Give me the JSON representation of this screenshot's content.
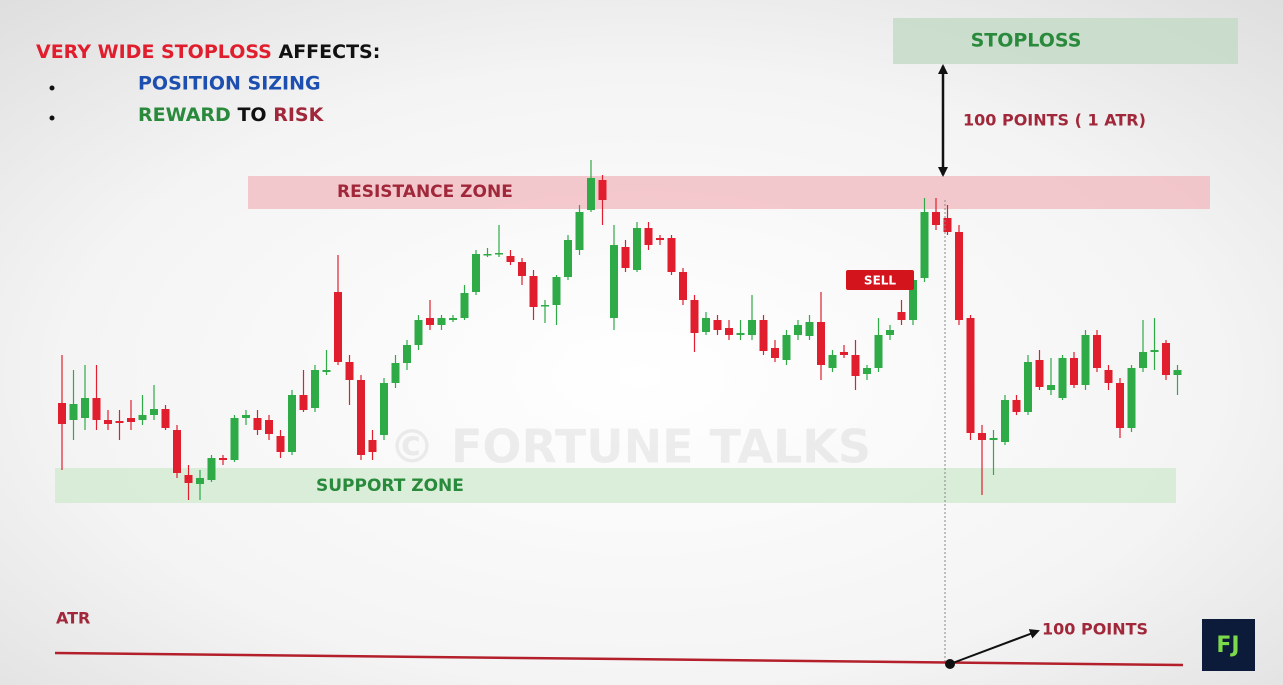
{
  "heading": {
    "lead": "VERY WIDE STOPLOSS",
    "tail": "AFFECTS:"
  },
  "bullets": {
    "sizing": "POSITION SIZING",
    "reward": "REWARD",
    "to": "TO",
    "risk": "RISK"
  },
  "labels": {
    "stoploss": "STOPLOSS",
    "distance": "100 POINTS ( 1 ATR)",
    "resistance": "RESISTANCE ZONE",
    "support": "SUPPORT ZONE",
    "sell": "SELL",
    "atr": "ATR",
    "atr_points": "100 POINTS",
    "watermark": "© FORTUNE TALKS",
    "logo": "FJ"
  },
  "chart_data": {
    "type": "candlestick",
    "ylim": [
      0,
      685
    ],
    "up_color": "#2eaa47",
    "down_color": "#e01e2d",
    "candles": [
      [
        282,
        330,
        215,
        261
      ],
      [
        265,
        315,
        245,
        281
      ],
      [
        267,
        320,
        255,
        287
      ],
      [
        287,
        320,
        255,
        265
      ],
      [
        265,
        275,
        255,
        261
      ],
      [
        264,
        275,
        245,
        262
      ],
      [
        267,
        285,
        255,
        263
      ],
      [
        265,
        290,
        260,
        270
      ],
      [
        270,
        300,
        265,
        276
      ],
      [
        276,
        280,
        255,
        257
      ],
      [
        255,
        260,
        207,
        212
      ],
      [
        210,
        220,
        185,
        202
      ],
      [
        201,
        215,
        185,
        207
      ],
      [
        205,
        230,
        203,
        227
      ],
      [
        227,
        230,
        220,
        225
      ],
      [
        225,
        270,
        223,
        267
      ],
      [
        267,
        275,
        260,
        270
      ],
      [
        267,
        275,
        250,
        255
      ],
      [
        265,
        270,
        245,
        251
      ],
      [
        249,
        255,
        227,
        233
      ],
      [
        233,
        295,
        230,
        290
      ],
      [
        290,
        315,
        273,
        275
      ],
      [
        277,
        320,
        273,
        315
      ],
      [
        313,
        335,
        310,
        315
      ],
      [
        393,
        430,
        320,
        323
      ],
      [
        323,
        330,
        280,
        305
      ],
      [
        305,
        310,
        225,
        230
      ],
      [
        245,
        255,
        225,
        233
      ],
      [
        250,
        307,
        245,
        302
      ],
      [
        302,
        330,
        297,
        322
      ],
      [
        322,
        345,
        315,
        340
      ],
      [
        340,
        370,
        335,
        365
      ],
      [
        367,
        385,
        355,
        360
      ],
      [
        360,
        370,
        355,
        367
      ],
      [
        365,
        370,
        363,
        367
      ],
      [
        367,
        400,
        365,
        392
      ],
      [
        393,
        435,
        390,
        431
      ],
      [
        430,
        437,
        428,
        431
      ],
      [
        431,
        460,
        428,
        432
      ],
      [
        429,
        435,
        420,
        423
      ],
      [
        423,
        427,
        400,
        409
      ],
      [
        409,
        415,
        365,
        378
      ],
      [
        379,
        385,
        362,
        380
      ],
      [
        380,
        410,
        360,
        408
      ],
      [
        408,
        450,
        405,
        445
      ],
      [
        435,
        480,
        430,
        473
      ],
      [
        475,
        525,
        473,
        507
      ],
      [
        505,
        510,
        460,
        485
      ],
      [
        367,
        460,
        355,
        440
      ],
      [
        438,
        445,
        413,
        417
      ],
      [
        415,
        463,
        413,
        457
      ],
      [
        457,
        463,
        435,
        440
      ],
      [
        447,
        450,
        440,
        445
      ],
      [
        447,
        450,
        410,
        413
      ],
      [
        413,
        417,
        380,
        385
      ],
      [
        385,
        390,
        333,
        352
      ],
      [
        353,
        373,
        350,
        367
      ],
      [
        365,
        370,
        350,
        355
      ],
      [
        357,
        365,
        345,
        350
      ],
      [
        350,
        365,
        345,
        352
      ],
      [
        350,
        390,
        345,
        365
      ],
      [
        365,
        370,
        330,
        334
      ],
      [
        337,
        345,
        323,
        327
      ],
      [
        325,
        355,
        320,
        350
      ],
      [
        350,
        365,
        345,
        360
      ],
      [
        349,
        370,
        345,
        363
      ],
      [
        363,
        393,
        305,
        320
      ],
      [
        317,
        335,
        313,
        330
      ],
      [
        333,
        340,
        327,
        330
      ],
      [
        330,
        345,
        295,
        309
      ],
      [
        311,
        320,
        305,
        317
      ],
      [
        317,
        367,
        313,
        350
      ],
      [
        350,
        360,
        345,
        355
      ],
      [
        373,
        385,
        360,
        365
      ],
      [
        365,
        410,
        360,
        405
      ],
      [
        407,
        487,
        403,
        473
      ],
      [
        473,
        487,
        455,
        460
      ],
      [
        467,
        480,
        450,
        453
      ],
      [
        453,
        460,
        360,
        365
      ],
      [
        367,
        370,
        245,
        252
      ],
      [
        252,
        260,
        190,
        245
      ],
      [
        245,
        255,
        210,
        247
      ],
      [
        243,
        290,
        240,
        285
      ],
      [
        285,
        290,
        270,
        273
      ],
      [
        273,
        330,
        270,
        323
      ],
      [
        325,
        335,
        295,
        298
      ],
      [
        295,
        327,
        290,
        300
      ],
      [
        287,
        330,
        285,
        327
      ],
      [
        327,
        333,
        297,
        300
      ],
      [
        300,
        355,
        295,
        350
      ],
      [
        350,
        355,
        313,
        317
      ],
      [
        315,
        320,
        295,
        302
      ],
      [
        302,
        307,
        247,
        257
      ],
      [
        257,
        320,
        253,
        317
      ],
      [
        317,
        365,
        313,
        333
      ],
      [
        333,
        367,
        315,
        335
      ],
      [
        342,
        345,
        305,
        310
      ],
      [
        310,
        320,
        290,
        315
      ]
    ]
  }
}
